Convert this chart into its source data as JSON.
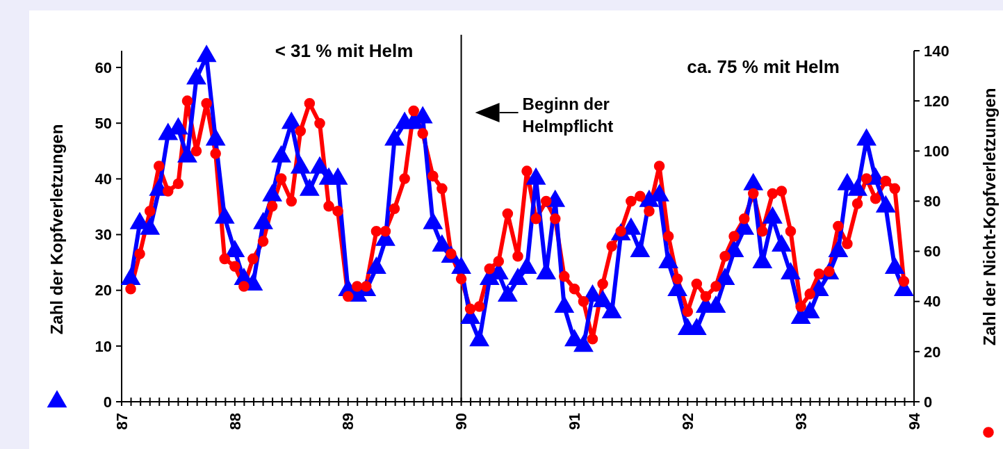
{
  "chart_data": {
    "type": "line",
    "ylabel": "Zahl der Kopfverletzungen",
    "y2label": "Zahl der Nicht-Kopfverletzungen",
    "annotations": [
      "< 31 % mit Helm",
      "ca. 75 % mit Helm"
    ],
    "ref_lines": [
      {
        "axis": "x",
        "value": 90,
        "label": "Beginn der Helmpflicht",
        "color": "#000000"
      }
    ],
    "x": [
      87.08,
      87.16,
      87.25,
      87.33,
      87.41,
      87.5,
      87.58,
      87.66,
      87.75,
      87.83,
      87.91,
      88.0,
      88.08,
      88.16,
      88.25,
      88.33,
      88.41,
      88.5,
      88.58,
      88.66,
      88.75,
      88.83,
      88.91,
      89.0,
      89.08,
      89.16,
      89.25,
      89.33,
      89.41,
      89.5,
      89.58,
      89.66,
      89.75,
      89.83,
      89.91,
      90.0,
      90.08,
      90.16,
      90.25,
      90.33,
      90.41,
      90.5,
      90.58,
      90.66,
      90.75,
      90.83,
      90.91,
      91.0,
      91.08,
      91.16,
      91.25,
      91.33,
      91.41,
      91.5,
      91.58,
      91.66,
      91.75,
      91.83,
      91.91,
      92.0,
      92.08,
      92.16,
      92.25,
      92.33,
      92.41,
      92.5,
      92.58,
      92.66,
      92.75,
      92.83,
      92.91,
      93.0,
      93.08,
      93.16,
      93.25,
      93.33,
      93.41,
      93.5,
      93.58,
      93.66,
      93.75,
      93.83,
      93.91
    ],
    "series": [
      {
        "color": "#0000ff",
        "marker": "triangle",
        "values": [
          22,
          32,
          31,
          38,
          48,
          49,
          44,
          58,
          62,
          47,
          33,
          27,
          22,
          21,
          32,
          37,
          44,
          50,
          42,
          38,
          42,
          40,
          40,
          20,
          19,
          20,
          24,
          29,
          47,
          50,
          50,
          51,
          32,
          28,
          26,
          24,
          15,
          11,
          22,
          23,
          19,
          22,
          24,
          40,
          23,
          36,
          17,
          11,
          10,
          19,
          18,
          16,
          30,
          31,
          27,
          36,
          37,
          25,
          20,
          13,
          13,
          17,
          17,
          22,
          27,
          31,
          39,
          25,
          33,
          28,
          23,
          15,
          16,
          20,
          23,
          27,
          39,
          38,
          47,
          40,
          35,
          24,
          20
        ]
      },
      {
        "color": "#ff0000",
        "marker": "circle",
        "axis": "y2",
        "values": [
          45,
          59,
          76,
          94,
          84,
          87,
          120,
          100,
          119,
          99,
          57,
          54,
          46,
          57,
          64,
          78,
          89,
          80,
          108,
          119,
          111,
          78,
          76,
          42,
          46,
          46,
          68,
          68,
          77,
          89,
          116,
          107,
          90,
          85,
          59,
          49,
          37,
          38,
          53,
          56,
          75,
          58,
          92,
          73,
          80,
          73,
          50,
          45,
          40,
          25,
          47,
          62,
          68,
          80,
          82,
          76,
          94,
          66,
          49,
          36,
          47,
          42,
          46,
          58,
          66,
          73,
          83,
          68,
          83,
          84,
          68,
          38,
          43,
          51,
          52,
          70,
          63,
          79,
          89,
          81,
          88,
          85,
          48
        ]
      }
    ],
    "xlim": [
      87,
      94
    ],
    "xticks": [
      87,
      {
        "value": 87.083,
        "label": null
      },
      {
        "value": 87.167,
        "label": null
      },
      {
        "value": 87.25,
        "label": null
      },
      {
        "value": 87.333,
        "label": null
      },
      {
        "value": 87.417,
        "label": null
      },
      {
        "value": 87.5,
        "label": null
      },
      {
        "value": 87.583,
        "label": null
      },
      {
        "value": 87.667,
        "label": null
      },
      {
        "value": 87.75,
        "label": null
      },
      {
        "value": 87.833,
        "label": null
      },
      {
        "value": 87.917,
        "label": null
      },
      88,
      {
        "value": 88.083,
        "label": null
      },
      {
        "value": 88.167,
        "label": null
      },
      {
        "value": 88.25,
        "label": null
      },
      {
        "value": 88.333,
        "label": null
      },
      {
        "value": 88.417,
        "label": null
      },
      {
        "value": 88.5,
        "label": null
      },
      {
        "value": 88.583,
        "label": null
      },
      {
        "value": 88.667,
        "label": null
      },
      {
        "value": 88.75,
        "label": null
      },
      {
        "value": 88.833,
        "label": null
      },
      {
        "value": 88.917,
        "label": null
      },
      89,
      {
        "value": 89.083,
        "label": null
      },
      {
        "value": 89.167,
        "label": null
      },
      {
        "value": 89.25,
        "label": null
      },
      {
        "value": 89.333,
        "label": null
      },
      {
        "value": 89.417,
        "label": null
      },
      {
        "value": 89.5,
        "label": null
      },
      {
        "value": 89.583,
        "label": null
      },
      {
        "value": 89.667,
        "label": null
      },
      {
        "value": 89.75,
        "label": null
      },
      {
        "value": 89.833,
        "label": null
      },
      {
        "value": 89.917,
        "label": null
      },
      90,
      {
        "value": 90.083,
        "label": null
      },
      {
        "value": 90.167,
        "label": null
      },
      {
        "value": 90.25,
        "label": null
      },
      {
        "value": 90.333,
        "label": null
      },
      {
        "value": 90.417,
        "label": null
      },
      {
        "value": 90.5,
        "label": null
      },
      {
        "value": 90.583,
        "label": null
      },
      {
        "value": 90.667,
        "label": null
      },
      {
        "value": 90.75,
        "label": null
      },
      {
        "value": 90.833,
        "label": null
      },
      {
        "value": 90.917,
        "label": null
      },
      91,
      {
        "value": 91.083,
        "label": null
      },
      {
        "value": 91.167,
        "label": null
      },
      {
        "value": 91.25,
        "label": null
      },
      {
        "value": 91.333,
        "label": null
      },
      {
        "value": 91.417,
        "label": null
      },
      {
        "value": 91.5,
        "label": null
      },
      {
        "value": 91.583,
        "label": null
      },
      {
        "value": 91.667,
        "label": null
      },
      {
        "value": 91.75,
        "label": null
      },
      {
        "value": 91.833,
        "label": null
      },
      {
        "value": 91.917,
        "label": null
      },
      92,
      {
        "value": 92.083,
        "label": null
      },
      {
        "value": 92.167,
        "label": null
      },
      {
        "value": 92.25,
        "label": null
      },
      {
        "value": 92.333,
        "label": null
      },
      {
        "value": 92.417,
        "label": null
      },
      {
        "value": 92.5,
        "label": null
      },
      {
        "value": 92.583,
        "label": null
      },
      {
        "value": 92.667,
        "label": null
      },
      {
        "value": 92.75,
        "label": null
      },
      {
        "value": 92.833,
        "label": null
      },
      {
        "value": 92.917,
        "label": null
      },
      93,
      {
        "value": 93.083,
        "label": null
      },
      {
        "value": 93.167,
        "label": null
      },
      {
        "value": 93.25,
        "label": null
      },
      {
        "value": 93.333,
        "label": null
      },
      {
        "value": 93.417,
        "label": null
      },
      {
        "value": 93.5,
        "label": null
      },
      {
        "value": 93.583,
        "label": null
      },
      {
        "value": 93.667,
        "label": null
      },
      {
        "value": 93.75,
        "label": null
      },
      {
        "value": 93.833,
        "label": null
      },
      {
        "value": 93.917,
        "label": null
      },
      94
    ],
    "ylim": [
      0,
      63
    ],
    "yticks": [
      0,
      10,
      20,
      30,
      40,
      50,
      60
    ],
    "y2lim": [
      0,
      140
    ],
    "y2ticks": [
      0,
      20,
      40,
      60,
      80,
      100,
      120,
      140
    ],
    "grid": false
  }
}
